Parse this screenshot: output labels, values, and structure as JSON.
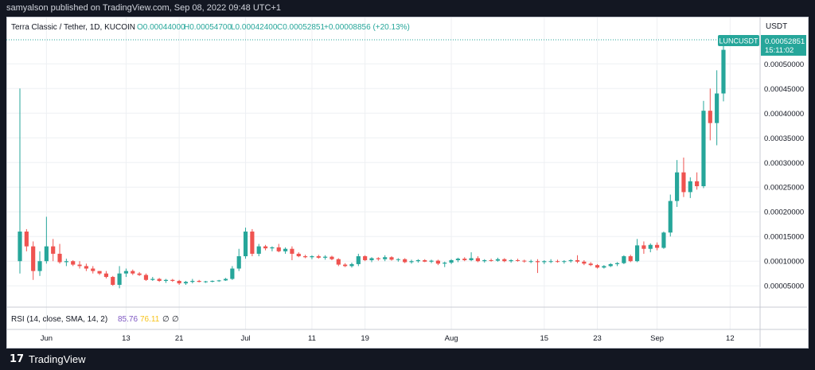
{
  "header": {
    "published_text": "samyalson published on TradingView.com, Sep 08, 2022 09:48 UTC+1"
  },
  "footer": {
    "brand": "TradingView",
    "logo_icon": "tradingview-logo-icon",
    "logo_glyph": "17"
  },
  "colors": {
    "up": "#26a69a",
    "down": "#ef5350",
    "price_tag": "#26a69a",
    "rsi_value": "#7e57c2",
    "rsi_sma": "#f7c31a",
    "grid": "#eef0f3"
  },
  "legend": {
    "symbol": "Terra Classic / Tether, 1D, KUCOIN",
    "open": "O0.00044000",
    "high": "H0.00054700",
    "low": "L0.00042400",
    "close": "C0.00052851",
    "change": "+0.00008856 (+20.13%)"
  },
  "price_axis": {
    "unit": "USDT",
    "labels": [
      "0.00050000",
      "0.00045000",
      "0.00040000",
      "0.00035000",
      "0.00030000",
      "0.00025000",
      "0.00020000",
      "0.00015000",
      "0.00010000",
      "0.00005000"
    ]
  },
  "price_tag": {
    "symbol": "LUNCUSDT",
    "price": "0.00052851",
    "countdown": "15:11:02"
  },
  "rsi": {
    "label": "RSI (14, close, SMA, 14, 2)",
    "value": "85.76",
    "sma": "76.11",
    "extra1": "∅",
    "extra2": "∅"
  },
  "chart_data": {
    "type": "candlestick",
    "title": "Terra Classic / Tether, 1D, KUCOIN",
    "ylabel": "USDT",
    "ylim": [
      1e-05,
      0.000565
    ],
    "x_tick_labels": [
      {
        "label": "Jun",
        "date": "2022-06-01"
      },
      {
        "label": "13",
        "date": "2022-06-13"
      },
      {
        "label": "21",
        "date": "2022-06-21"
      },
      {
        "label": "Jul",
        "date": "2022-07-01"
      },
      {
        "label": "11",
        "date": "2022-07-11"
      },
      {
        "label": "19",
        "date": "2022-07-19"
      },
      {
        "label": "Aug",
        "date": "2022-08-01"
      },
      {
        "label": "15",
        "date": "2022-08-15"
      },
      {
        "label": "23",
        "date": "2022-08-23"
      },
      {
        "label": "Sep",
        "date": "2022-09-01"
      },
      {
        "label": "12",
        "date": "2022-09-12"
      }
    ],
    "x_range": [
      "2022-05-28",
      "2022-09-14"
    ],
    "grid": true,
    "candles": [
      {
        "date": "2022-05-28",
        "o": 0.0001,
        "h": 0.00045,
        "l": 7.5e-05,
        "c": 0.00016
      },
      {
        "date": "2022-05-29",
        "o": 0.00016,
        "h": 0.000165,
        "l": 0.00012,
        "c": 0.00013
      },
      {
        "date": "2022-05-30",
        "o": 0.00013,
        "h": 0.00014,
        "l": 6.2e-05,
        "c": 8e-05
      },
      {
        "date": "2022-05-31",
        "o": 8e-05,
        "h": 0.00012,
        "l": 7e-05,
        "c": 0.0001
      },
      {
        "date": "2022-06-01",
        "o": 0.0001,
        "h": 0.00019,
        "l": 9.5e-05,
        "c": 0.00013
      },
      {
        "date": "2022-06-02",
        "o": 0.00013,
        "h": 0.000145,
        "l": 0.0001,
        "c": 0.000115
      },
      {
        "date": "2022-06-03",
        "o": 0.000115,
        "h": 0.000135,
        "l": 9.5e-05,
        "c": 9.8e-05
      },
      {
        "date": "2022-06-04",
        "o": 9.8e-05,
        "h": 0.000105,
        "l": 9e-05,
        "c": 0.0001
      },
      {
        "date": "2022-06-05",
        "o": 0.0001,
        "h": 0.000102,
        "l": 9e-05,
        "c": 9.3e-05
      },
      {
        "date": "2022-06-06",
        "o": 9.3e-05,
        "h": 0.0001,
        "l": 8.5e-05,
        "c": 9e-05
      },
      {
        "date": "2022-06-07",
        "o": 9e-05,
        "h": 9.5e-05,
        "l": 8e-05,
        "c": 8.5e-05
      },
      {
        "date": "2022-06-08",
        "o": 8.5e-05,
        "h": 9e-05,
        "l": 7.5e-05,
        "c": 8e-05
      },
      {
        "date": "2022-06-09",
        "o": 8e-05,
        "h": 8e-05,
        "l": 7.2e-05,
        "c": 7.5e-05
      },
      {
        "date": "2022-06-10",
        "o": 7.5e-05,
        "h": 8e-05,
        "l": 6.5e-05,
        "c": 6.8e-05
      },
      {
        "date": "2022-06-11",
        "o": 6.8e-05,
        "h": 7e-05,
        "l": 5e-05,
        "c": 5.2e-05
      },
      {
        "date": "2022-06-12",
        "o": 5.2e-05,
        "h": 9e-05,
        "l": 4.5e-05,
        "c": 7.5e-05
      },
      {
        "date": "2022-06-13",
        "o": 7.5e-05,
        "h": 8.5e-05,
        "l": 6.8e-05,
        "c": 8e-05
      },
      {
        "date": "2022-06-14",
        "o": 8e-05,
        "h": 8.3e-05,
        "l": 7.2e-05,
        "c": 7.5e-05
      },
      {
        "date": "2022-06-15",
        "o": 7.5e-05,
        "h": 7.8e-05,
        "l": 7e-05,
        "c": 7.2e-05
      },
      {
        "date": "2022-06-16",
        "o": 7.2e-05,
        "h": 7.5e-05,
        "l": 6e-05,
        "c": 6.2e-05
      },
      {
        "date": "2022-06-17",
        "o": 6.2e-05,
        "h": 6.8e-05,
        "l": 6e-05,
        "c": 6.4e-05
      },
      {
        "date": "2022-06-18",
        "o": 6.4e-05,
        "h": 6.6e-05,
        "l": 5.8e-05,
        "c": 6e-05
      },
      {
        "date": "2022-06-19",
        "o": 6e-05,
        "h": 6.4e-05,
        "l": 5.6e-05,
        "c": 6.2e-05
      },
      {
        "date": "2022-06-20",
        "o": 6.2e-05,
        "h": 6.4e-05,
        "l": 5.8e-05,
        "c": 6e-05
      },
      {
        "date": "2022-06-21",
        "o": 6e-05,
        "h": 6.2e-05,
        "l": 5.2e-05,
        "c": 5.5e-05
      },
      {
        "date": "2022-06-22",
        "o": 5.5e-05,
        "h": 6e-05,
        "l": 5.2e-05,
        "c": 5.8e-05
      },
      {
        "date": "2022-06-23",
        "o": 5.8e-05,
        "h": 6.4e-05,
        "l": 5.5e-05,
        "c": 6e-05
      },
      {
        "date": "2022-06-24",
        "o": 6e-05,
        "h": 6.2e-05,
        "l": 5.7e-05,
        "c": 5.8e-05
      },
      {
        "date": "2022-06-25",
        "o": 5.8e-05,
        "h": 6e-05,
        "l": 5.6e-05,
        "c": 5.9e-05
      },
      {
        "date": "2022-06-26",
        "o": 5.9e-05,
        "h": 6.1e-05,
        "l": 5.7e-05,
        "c": 6e-05
      },
      {
        "date": "2022-06-27",
        "o": 6e-05,
        "h": 6.2e-05,
        "l": 5.8e-05,
        "c": 6.1e-05
      },
      {
        "date": "2022-06-28",
        "o": 6.1e-05,
        "h": 6.6e-05,
        "l": 6e-05,
        "c": 6.4e-05
      },
      {
        "date": "2022-06-29",
        "o": 6.4e-05,
        "h": 9e-05,
        "l": 6.2e-05,
        "c": 8.5e-05
      },
      {
        "date": "2022-06-30",
        "o": 8.5e-05,
        "h": 0.000125,
        "l": 8e-05,
        "c": 0.00011
      },
      {
        "date": "2022-07-01",
        "o": 0.00011,
        "h": 0.000168,
        "l": 0.000105,
        "c": 0.00016
      },
      {
        "date": "2022-07-02",
        "o": 0.00016,
        "h": 0.000165,
        "l": 0.00011,
        "c": 0.000115
      },
      {
        "date": "2022-07-03",
        "o": 0.000115,
        "h": 0.000135,
        "l": 0.00011,
        "c": 0.00013
      },
      {
        "date": "2022-07-04",
        "o": 0.00013,
        "h": 0.000133,
        "l": 0.000122,
        "c": 0.000126
      },
      {
        "date": "2022-07-05",
        "o": 0.000126,
        "h": 0.00013,
        "l": 0.00012,
        "c": 0.000128
      },
      {
        "date": "2022-07-06",
        "o": 0.000128,
        "h": 0.000135,
        "l": 0.000118,
        "c": 0.00012
      },
      {
        "date": "2022-07-07",
        "o": 0.00012,
        "h": 0.000128,
        "l": 0.000115,
        "c": 0.000125
      },
      {
        "date": "2022-07-08",
        "o": 0.000125,
        "h": 0.00013,
        "l": 0.000102,
        "c": 0.000115
      },
      {
        "date": "2022-07-09",
        "o": 0.000115,
        "h": 0.000118,
        "l": 0.000108,
        "c": 0.00011
      },
      {
        "date": "2022-07-10",
        "o": 0.00011,
        "h": 0.000113,
        "l": 0.000106,
        "c": 0.000108
      },
      {
        "date": "2022-07-11",
        "o": 0.000108,
        "h": 0.000112,
        "l": 0.000104,
        "c": 0.00011
      },
      {
        "date": "2022-07-12",
        "o": 0.00011,
        "h": 0.000113,
        "l": 0.000105,
        "c": 0.000107
      },
      {
        "date": "2022-07-13",
        "o": 0.000107,
        "h": 0.000112,
        "l": 0.000103,
        "c": 0.000109
      },
      {
        "date": "2022-07-14",
        "o": 0.000109,
        "h": 0.000111,
        "l": 0.000102,
        "c": 0.000104
      },
      {
        "date": "2022-07-15",
        "o": 0.000104,
        "h": 0.000106,
        "l": 9e-05,
        "c": 9.3e-05
      },
      {
        "date": "2022-07-16",
        "o": 9.3e-05,
        "h": 9.6e-05,
        "l": 8.8e-05,
        "c": 9e-05
      },
      {
        "date": "2022-07-17",
        "o": 9e-05,
        "h": 9.7e-05,
        "l": 8.7e-05,
        "c": 9.4e-05
      },
      {
        "date": "2022-07-18",
        "o": 9.4e-05,
        "h": 0.000115,
        "l": 9e-05,
        "c": 0.00011
      },
      {
        "date": "2022-07-19",
        "o": 0.00011,
        "h": 0.000112,
        "l": 0.0001,
        "c": 0.000102
      },
      {
        "date": "2022-07-20",
        "o": 0.000102,
        "h": 0.000108,
        "l": 9.8e-05,
        "c": 0.000106
      },
      {
        "date": "2022-07-21",
        "o": 0.000106,
        "h": 0.000108,
        "l": 0.000101,
        "c": 0.000104
      },
      {
        "date": "2022-07-22",
        "o": 0.000104,
        "h": 0.000112,
        "l": 0.0001,
        "c": 0.000108
      },
      {
        "date": "2022-07-23",
        "o": 0.000108,
        "h": 0.00011,
        "l": 0.000101,
        "c": 0.000103
      },
      {
        "date": "2022-07-24",
        "o": 0.000103,
        "h": 0.000106,
        "l": 9.9e-05,
        "c": 0.000104
      },
      {
        "date": "2022-07-25",
        "o": 0.000104,
        "h": 0.000106,
        "l": 9.6e-05,
        "c": 9.8e-05
      },
      {
        "date": "2022-07-26",
        "o": 9.8e-05,
        "h": 0.000103,
        "l": 9.5e-05,
        "c": 0.0001
      },
      {
        "date": "2022-07-27",
        "o": 0.0001,
        "h": 0.000104,
        "l": 9.7e-05,
        "c": 0.000102
      },
      {
        "date": "2022-07-28",
        "o": 0.000102,
        "h": 0.000104,
        "l": 9.8e-05,
        "c": 9.9e-05
      },
      {
        "date": "2022-07-29",
        "o": 9.9e-05,
        "h": 0.000103,
        "l": 9.6e-05,
        "c": 0.000101
      },
      {
        "date": "2022-07-30",
        "o": 0.000101,
        "h": 0.000103,
        "l": 9.2e-05,
        "c": 9.5e-05
      },
      {
        "date": "2022-07-31",
        "o": 9.5e-05,
        "h": 9.9e-05,
        "l": 8.8e-05,
        "c": 9.7e-05
      },
      {
        "date": "2022-08-01",
        "o": 9.7e-05,
        "h": 0.000104,
        "l": 9.4e-05,
        "c": 0.000102
      },
      {
        "date": "2022-08-02",
        "o": 0.000102,
        "h": 0.000107,
        "l": 9.8e-05,
        "c": 0.000105
      },
      {
        "date": "2022-08-03",
        "o": 0.000105,
        "h": 0.000108,
        "l": 0.0001,
        "c": 0.000102
      },
      {
        "date": "2022-08-04",
        "o": 0.000102,
        "h": 0.000118,
        "l": 0.0001,
        "c": 0.000106
      },
      {
        "date": "2022-08-05",
        "o": 0.000106,
        "h": 0.00011,
        "l": 9.8e-05,
        "c": 0.0001
      },
      {
        "date": "2022-08-06",
        "o": 0.0001,
        "h": 0.000104,
        "l": 9.7e-05,
        "c": 0.000102
      },
      {
        "date": "2022-08-07",
        "o": 0.000102,
        "h": 0.000105,
        "l": 9.9e-05,
        "c": 0.000101
      },
      {
        "date": "2022-08-08",
        "o": 0.000101,
        "h": 0.000107,
        "l": 9.9e-05,
        "c": 0.000104
      },
      {
        "date": "2022-08-09",
        "o": 0.000104,
        "h": 0.000106,
        "l": 9.8e-05,
        "c": 0.0001
      },
      {
        "date": "2022-08-10",
        "o": 0.0001,
        "h": 0.000104,
        "l": 9.7e-05,
        "c": 0.000102
      },
      {
        "date": "2022-08-11",
        "o": 0.000102,
        "h": 0.000105,
        "l": 9.9e-05,
        "c": 0.000101
      },
      {
        "date": "2022-08-12",
        "o": 0.000101,
        "h": 0.000103,
        "l": 9.7e-05,
        "c": 0.0001
      },
      {
        "date": "2022-08-13",
        "o": 0.0001,
        "h": 0.000103,
        "l": 9.6e-05,
        "c": 0.0001
      },
      {
        "date": "2022-08-14",
        "o": 0.0001,
        "h": 0.000104,
        "l": 7.6e-05,
        "c": 9.8e-05
      },
      {
        "date": "2022-08-15",
        "o": 9.8e-05,
        "h": 0.000102,
        "l": 9.4e-05,
        "c": 0.0001
      },
      {
        "date": "2022-08-16",
        "o": 0.0001,
        "h": 0.000104,
        "l": 9.6e-05,
        "c": 0.0001
      },
      {
        "date": "2022-08-17",
        "o": 0.0001,
        "h": 0.000103,
        "l": 9.7e-05,
        "c": 9.9e-05
      },
      {
        "date": "2022-08-18",
        "o": 9.9e-05,
        "h": 0.000102,
        "l": 9.5e-05,
        "c": 0.0001
      },
      {
        "date": "2022-08-19",
        "o": 0.0001,
        "h": 0.000104,
        "l": 9.7e-05,
        "c": 0.000102
      },
      {
        "date": "2022-08-20",
        "o": 0.000102,
        "h": 0.000112,
        "l": 9.6e-05,
        "c": 9.9e-05
      },
      {
        "date": "2022-08-21",
        "o": 9.9e-05,
        "h": 0.000102,
        "l": 9.2e-05,
        "c": 9.5e-05
      },
      {
        "date": "2022-08-22",
        "o": 9.5e-05,
        "h": 9.8e-05,
        "l": 9e-05,
        "c": 9.2e-05
      },
      {
        "date": "2022-08-23",
        "o": 9.2e-05,
        "h": 9.4e-05,
        "l": 8.5e-05,
        "c": 8.7e-05
      },
      {
        "date": "2022-08-24",
        "o": 8.7e-05,
        "h": 9.2e-05,
        "l": 8.5e-05,
        "c": 9e-05
      },
      {
        "date": "2022-08-25",
        "o": 9e-05,
        "h": 9.6e-05,
        "l": 8.8e-05,
        "c": 9.4e-05
      },
      {
        "date": "2022-08-26",
        "o": 9.4e-05,
        "h": 9.8e-05,
        "l": 9e-05,
        "c": 9.6e-05
      },
      {
        "date": "2022-08-27",
        "o": 9.6e-05,
        "h": 0.000112,
        "l": 9.4e-05,
        "c": 0.00011
      },
      {
        "date": "2022-08-28",
        "o": 0.00011,
        "h": 0.000113,
        "l": 9.8e-05,
        "c": 0.0001
      },
      {
        "date": "2022-08-29",
        "o": 0.0001,
        "h": 0.000145,
        "l": 9.8e-05,
        "c": 0.000132
      },
      {
        "date": "2022-08-30",
        "o": 0.000132,
        "h": 0.00014,
        "l": 0.000115,
        "c": 0.000125
      },
      {
        "date": "2022-08-31",
        "o": 0.000125,
        "h": 0.000136,
        "l": 0.000118,
        "c": 0.000133
      },
      {
        "date": "2022-09-01",
        "o": 0.000133,
        "h": 0.000138,
        "l": 0.000122,
        "c": 0.000127
      },
      {
        "date": "2022-09-02",
        "o": 0.000127,
        "h": 0.00016,
        "l": 0.000125,
        "c": 0.000158
      },
      {
        "date": "2022-09-03",
        "o": 0.000158,
        "h": 0.000235,
        "l": 0.00015,
        "c": 0.000222
      },
      {
        "date": "2022-09-04",
        "o": 0.000222,
        "h": 0.000305,
        "l": 0.00021,
        "c": 0.00028
      },
      {
        "date": "2022-09-05",
        "o": 0.00028,
        "h": 0.00031,
        "l": 0.00023,
        "c": 0.00024
      },
      {
        "date": "2022-09-06",
        "o": 0.00024,
        "h": 0.00027,
        "l": 0.000228,
        "c": 0.000262
      },
      {
        "date": "2022-09-07",
        "o": 0.000262,
        "h": 0.00028,
        "l": 0.000245,
        "c": 0.000252
      },
      {
        "date": "2022-09-08",
        "o": 0.000252,
        "h": 0.000425,
        "l": 0.000248,
        "c": 0.000405
      },
      {
        "date": "2022-09-09",
        "o": 0.000405,
        "h": 0.00045,
        "l": 0.000345,
        "c": 0.00038
      },
      {
        "date": "2022-09-10",
        "o": 0.00038,
        "h": 0.000487,
        "l": 0.000335,
        "c": 0.00044
      },
      {
        "date": "2022-09-11",
        "o": 0.00044,
        "h": 0.000547,
        "l": 0.000424,
        "c": 0.00052851
      }
    ]
  }
}
